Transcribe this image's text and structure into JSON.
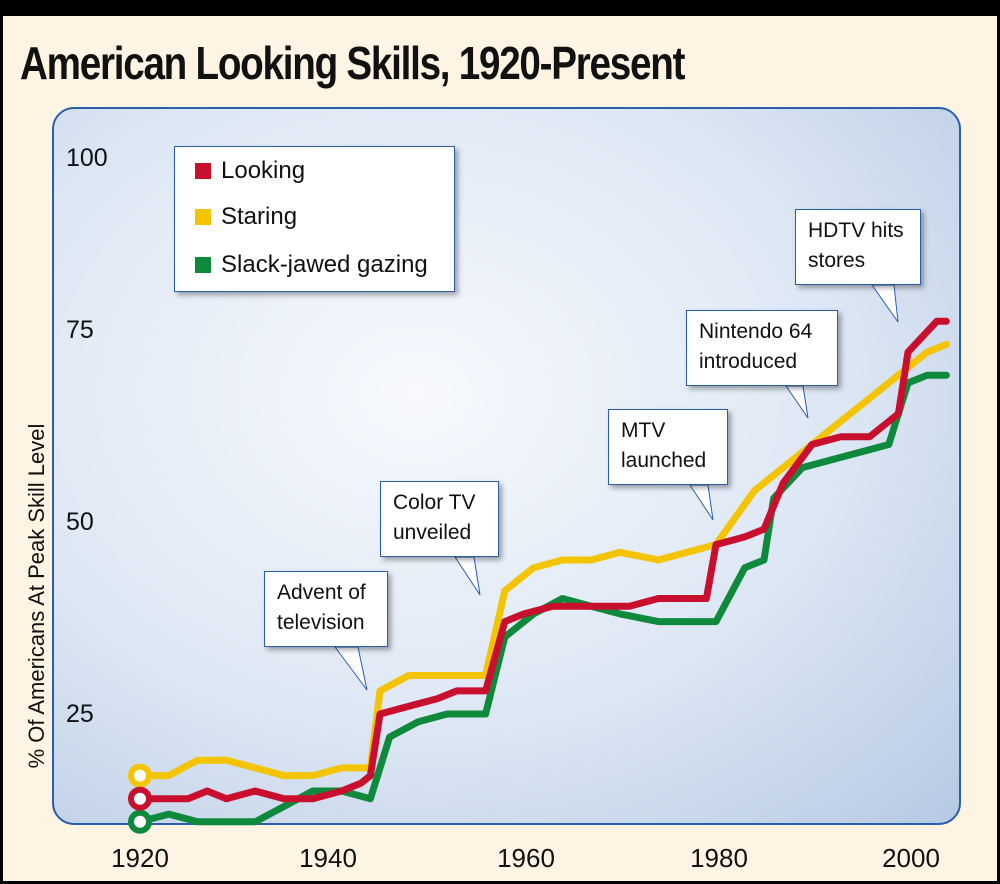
{
  "title": "American Looking Skills, 1920-Present",
  "chart_data": {
    "type": "line",
    "title": "American Looking Skills, 1920-Present",
    "xlabel": "",
    "ylabel": "% Of Americans At Peak Skill Level",
    "xlim": [
      1915,
      2005
    ],
    "ylim": [
      8,
      100
    ],
    "x_ticks": [
      "1920",
      "1940",
      "1960",
      "1980",
      "2000"
    ],
    "y_ticks": [
      "100",
      "75",
      "50",
      "25"
    ],
    "legend_position": "top-left",
    "series": [
      {
        "name": "Looking",
        "color": "#c8102e",
        "points": [
          [
            1920,
            14
          ],
          [
            1922,
            14
          ],
          [
            1925,
            14
          ],
          [
            1927,
            15
          ],
          [
            1929,
            14
          ],
          [
            1932,
            15
          ],
          [
            1935,
            14
          ],
          [
            1938,
            14
          ],
          [
            1941,
            15
          ],
          [
            1943,
            16
          ],
          [
            1944,
            17
          ],
          [
            1945,
            25
          ],
          [
            1948,
            26
          ],
          [
            1951,
            27
          ],
          [
            1953,
            28
          ],
          [
            1955,
            28
          ],
          [
            1956,
            28
          ],
          [
            1958,
            37
          ],
          [
            1960,
            38
          ],
          [
            1963,
            39
          ],
          [
            1966,
            39
          ],
          [
            1968,
            39
          ],
          [
            1971,
            39
          ],
          [
            1974,
            40
          ],
          [
            1977,
            40
          ],
          [
            1979,
            40
          ],
          [
            1980,
            47
          ],
          [
            1983,
            48
          ],
          [
            1985,
            49
          ],
          [
            1987,
            55
          ],
          [
            1990,
            60
          ],
          [
            1993,
            61
          ],
          [
            1996,
            61
          ],
          [
            1999,
            64
          ],
          [
            2000,
            72
          ],
          [
            2003,
            76
          ],
          [
            2004,
            76
          ]
        ]
      },
      {
        "name": "Staring",
        "color": "#f5c400",
        "points": [
          [
            1920,
            17
          ],
          [
            1923,
            17
          ],
          [
            1926,
            19
          ],
          [
            1929,
            19
          ],
          [
            1932,
            18
          ],
          [
            1935,
            17
          ],
          [
            1938,
            17
          ],
          [
            1941,
            18
          ],
          [
            1944,
            18
          ],
          [
            1945,
            28
          ],
          [
            1948,
            30
          ],
          [
            1951,
            30
          ],
          [
            1954,
            30
          ],
          [
            1956,
            30
          ],
          [
            1958,
            41
          ],
          [
            1961,
            44
          ],
          [
            1964,
            45
          ],
          [
            1967,
            45
          ],
          [
            1970,
            46
          ],
          [
            1974,
            45
          ],
          [
            1977,
            46
          ],
          [
            1980,
            47
          ],
          [
            1984,
            54
          ],
          [
            1987,
            57
          ],
          [
            1990,
            60
          ],
          [
            1993,
            63
          ],
          [
            1996,
            66
          ],
          [
            1999,
            69
          ],
          [
            2002,
            72
          ],
          [
            2004,
            73
          ]
        ]
      },
      {
        "name": "Slack-jawed gazing",
        "color": "#0f8a3c",
        "points": [
          [
            1920,
            11
          ],
          [
            1923,
            12
          ],
          [
            1926,
            11
          ],
          [
            1929,
            11
          ],
          [
            1932,
            11
          ],
          [
            1935,
            13
          ],
          [
            1938,
            15
          ],
          [
            1941,
            15
          ],
          [
            1944,
            14
          ],
          [
            1946,
            22
          ],
          [
            1949,
            24
          ],
          [
            1952,
            25
          ],
          [
            1955,
            25
          ],
          [
            1956,
            25
          ],
          [
            1958,
            35
          ],
          [
            1961,
            38
          ],
          [
            1964,
            40
          ],
          [
            1967,
            39
          ],
          [
            1970,
            38
          ],
          [
            1974,
            37
          ],
          [
            1977,
            37
          ],
          [
            1980,
            37
          ],
          [
            1983,
            44
          ],
          [
            1985,
            45
          ],
          [
            1986,
            53
          ],
          [
            1989,
            57
          ],
          [
            1992,
            58
          ],
          [
            1995,
            59
          ],
          [
            1998,
            60
          ],
          [
            2000,
            68
          ],
          [
            2002,
            69
          ],
          [
            2004,
            69
          ]
        ]
      }
    ],
    "annotations": [
      {
        "lines": [
          "Advent of",
          "television"
        ],
        "x": 1944
      },
      {
        "lines": [
          "Color TV",
          "unveiled"
        ],
        "x": 1955
      },
      {
        "lines": [
          "MTV",
          "launched"
        ],
        "x": 1978
      },
      {
        "lines": [
          "Nintendo 64",
          "introduced"
        ],
        "x": 1986
      },
      {
        "lines": [
          "HDTV hits",
          "stores"
        ],
        "x": 1998
      }
    ]
  }
}
